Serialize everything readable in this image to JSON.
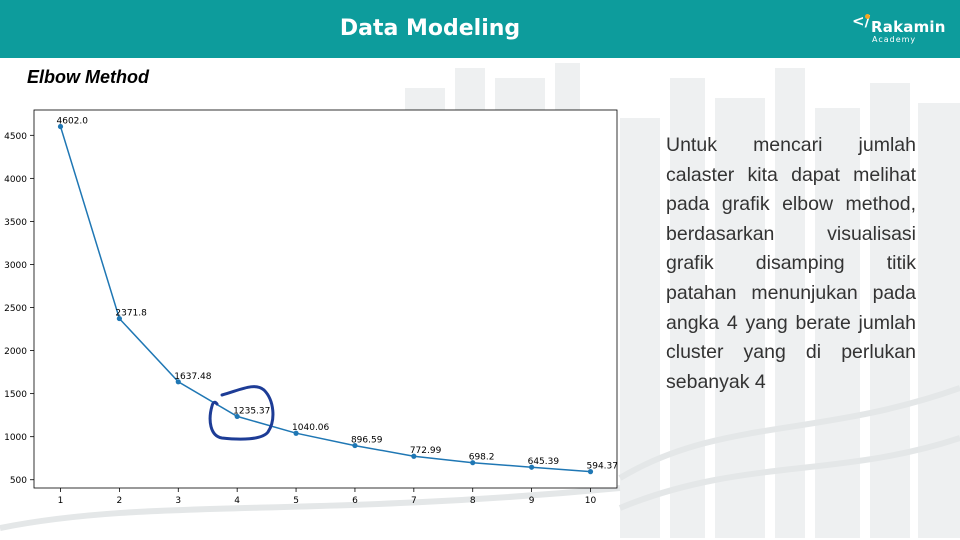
{
  "header": {
    "title": "Data Modeling",
    "logo_mark": "</",
    "logo_name": "Rakamin",
    "logo_sub": "Academy"
  },
  "section": {
    "title": "Elbow Method"
  },
  "description": "Untuk mencari jumlah calaster kita dapat melihat pada grafik elbow method, berdasarkan visualisasi grafik disamping titik patahan menunjukan pada angka 4 yang berate jumlah cluster yang di perlukan sebanyak 4",
  "colors": {
    "header_bg": "#0d9c9c",
    "line": "#1f77b4",
    "annotation": "#1d3c96"
  },
  "chart_data": {
    "type": "line",
    "x": [
      1,
      2,
      3,
      4,
      5,
      6,
      7,
      8,
      9,
      10
    ],
    "y": [
      4602.0,
      2371.8,
      1637.48,
      1235.37,
      1040.06,
      896.59,
      772.99,
      698.2,
      645.39,
      594.37
    ],
    "data_labels": [
      "4602.0",
      "2371.8",
      "1637.48",
      "1235.37",
      "1040.06",
      "896.59",
      "772.99",
      "698.2",
      "645.39",
      "594.37"
    ],
    "x_ticks": [
      "1",
      "2",
      "3",
      "4",
      "5",
      "6",
      "7",
      "8",
      "9",
      "10"
    ],
    "y_ticks": [
      500,
      1000,
      1500,
      2000,
      2500,
      3000,
      3500,
      4000,
      4500
    ],
    "xlim": [
      0.55,
      10.45
    ],
    "ylim": [
      404,
      4794
    ],
    "title": "",
    "xlabel": "",
    "ylabel": "",
    "grid": false,
    "annotation": "hand-drawn circle around point at x = 4"
  }
}
